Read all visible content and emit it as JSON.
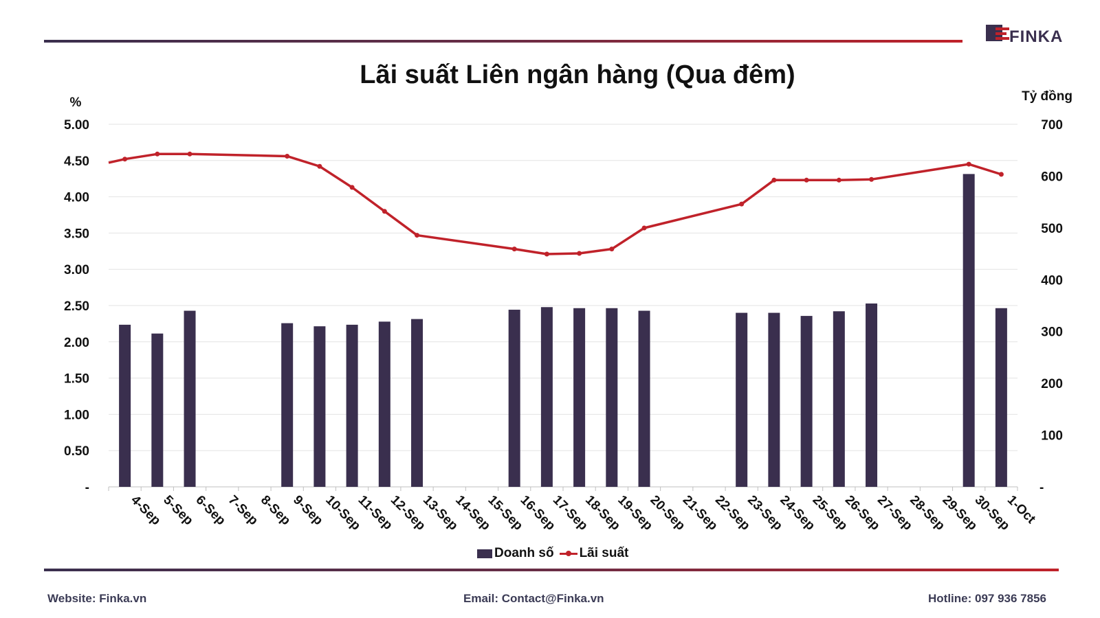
{
  "brand": {
    "logo_text": "FINKA",
    "primary": "#3a2f4e",
    "accent": "#c0222a"
  },
  "footer": {
    "website": "Website: Finka.vn",
    "email": "Email: Contact@Finka.vn",
    "hotline": "Hotline: 097 936 7856"
  },
  "chart_data": {
    "type": "bar",
    "title": "Lãi suất Liên ngân hàng (Qua đêm)",
    "ylabel_left": "%",
    "ylabel_right": "Tỷ đồng",
    "categories": [
      "4-Sep",
      "5-Sep",
      "6-Sep",
      "7-Sep",
      "8-Sep",
      "9-Sep",
      "10-Sep",
      "11-Sep",
      "12-Sep",
      "13-Sep",
      "14-Sep",
      "15-Sep",
      "16-Sep",
      "17-Sep",
      "18-Sep",
      "19-Sep",
      "20-Sep",
      "21-Sep",
      "22-Sep",
      "23-Sep",
      "24-Sep",
      "25-Sep",
      "26-Sep",
      "27-Sep",
      "28-Sep",
      "29-Sep",
      "30-Sep",
      "1-Oct"
    ],
    "y_left_ticks": [
      "-",
      "0.50",
      "1.00",
      "1.50",
      "2.00",
      "2.50",
      "3.00",
      "3.50",
      "4.00",
      "4.50",
      "5.00"
    ],
    "y_left_range": [
      0,
      5
    ],
    "y_right_ticks": [
      "-",
      "100",
      "200",
      "300",
      "400",
      "500",
      "600",
      "700"
    ],
    "y_right_range": [
      0,
      700
    ],
    "grid": true,
    "legend": "bottom-center",
    "series": [
      {
        "name": "Doanh số",
        "type": "bar",
        "axis": "right",
        "color": "#3a2f4e",
        "values": [
          313,
          296,
          340,
          null,
          null,
          316,
          310,
          313,
          319,
          324,
          null,
          null,
          342,
          347,
          345,
          345,
          340,
          null,
          null,
          336,
          336,
          330,
          339,
          354,
          null,
          null,
          604,
          345
        ]
      },
      {
        "name": "Lãi suất",
        "type": "line",
        "axis": "left",
        "color": "#c0222a",
        "values": [
          4.52,
          4.59,
          4.59,
          null,
          null,
          4.56,
          4.42,
          4.13,
          3.8,
          3.47,
          null,
          null,
          3.28,
          3.21,
          3.22,
          3.28,
          3.57,
          null,
          null,
          3.9,
          4.23,
          4.23,
          4.23,
          4.24,
          null,
          null,
          4.45,
          4.31
        ],
        "lead_in": 4.47
      }
    ]
  }
}
